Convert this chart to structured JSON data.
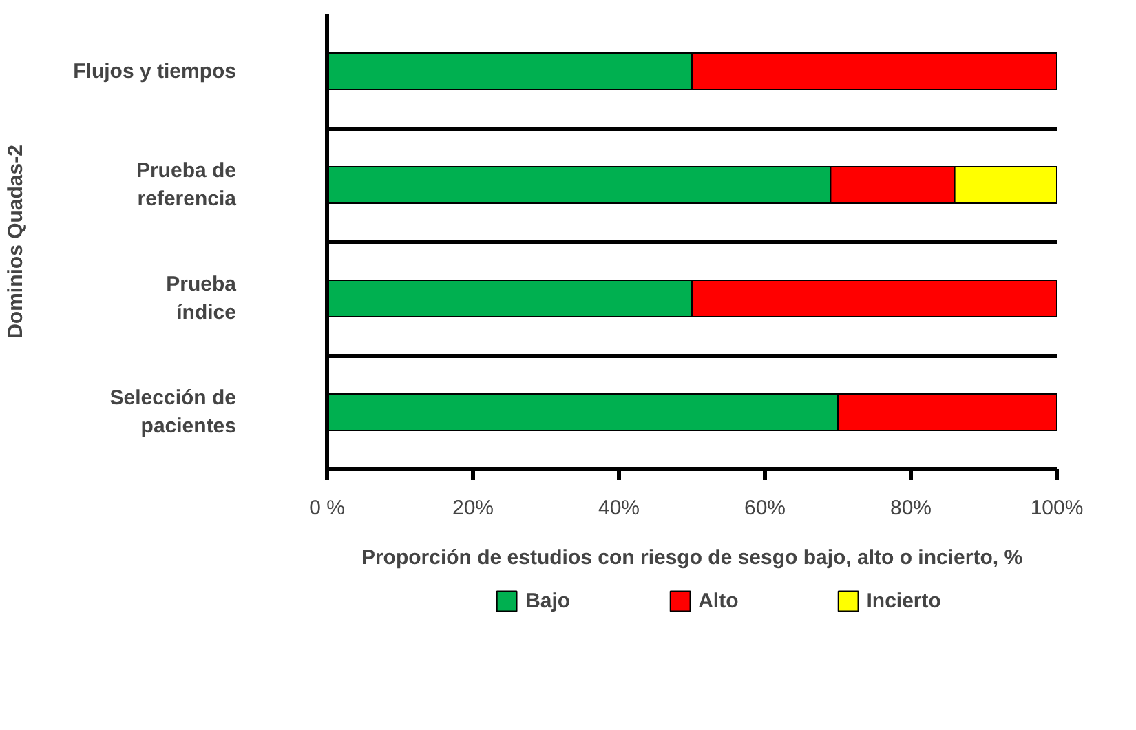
{
  "chart_data": {
    "type": "bar",
    "orientation": "horizontal",
    "stacked": true,
    "categories": [
      "Flujos y tiempos",
      "Prueba de\nreferencia",
      "Prueba\níndice",
      "Selección de\npacientes"
    ],
    "series": [
      {
        "name": "Bajo",
        "color": "#00b050",
        "values": [
          50,
          69,
          50,
          70
        ]
      },
      {
        "name": "Alto",
        "color": "#ff0000",
        "values": [
          50,
          17,
          50,
          30
        ]
      },
      {
        "name": "Incierto",
        "color": "#ffff00",
        "values": [
          null,
          14,
          null,
          null
        ]
      }
    ],
    "xlim": [
      0,
      100
    ],
    "xticks": [
      {
        "value": 0,
        "label": "0 %"
      },
      {
        "value": 20,
        "label": "20%"
      },
      {
        "value": 40,
        "label": "40%"
      },
      {
        "value": 60,
        "label": "60%"
      },
      {
        "value": 80,
        "label": "80%"
      },
      {
        "value": 100,
        "label": "100%"
      }
    ],
    "xlabel": "Proporción de estudios con riesgo de sesgo bajo, alto o incierto, %",
    "ylabel": "Dominios Quadas-2",
    "grid": "y",
    "legend": "bottom"
  }
}
